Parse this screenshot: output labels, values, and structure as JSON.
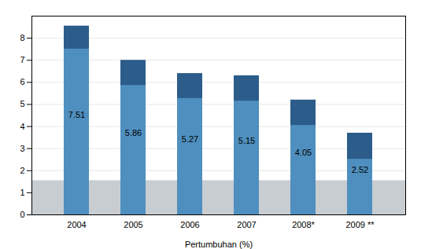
{
  "chart_data": {
    "type": "bar",
    "xlabel": "Pertumbuhan (%)",
    "categories": [
      "2004",
      "2005",
      "2006",
      "2007",
      "2008*",
      "2009 **"
    ],
    "series": [
      {
        "color": "#2b5c8a",
        "values": [
          8.55,
          7.0,
          6.4,
          6.3,
          5.2,
          3.7
        ]
      },
      {
        "color": "#4f8fbf",
        "values": [
          7.51,
          5.86,
          5.27,
          5.15,
          4.05,
          2.52
        ],
        "data_labels": true
      }
    ],
    "band": {
      "values": [
        0,
        1.55
      ],
      "color": "#c8cdd2"
    },
    "ylim": [
      0,
      9
    ],
    "yticks": [
      0,
      1,
      2,
      3,
      4,
      5,
      6,
      7,
      8
    ],
    "grid": true
  }
}
